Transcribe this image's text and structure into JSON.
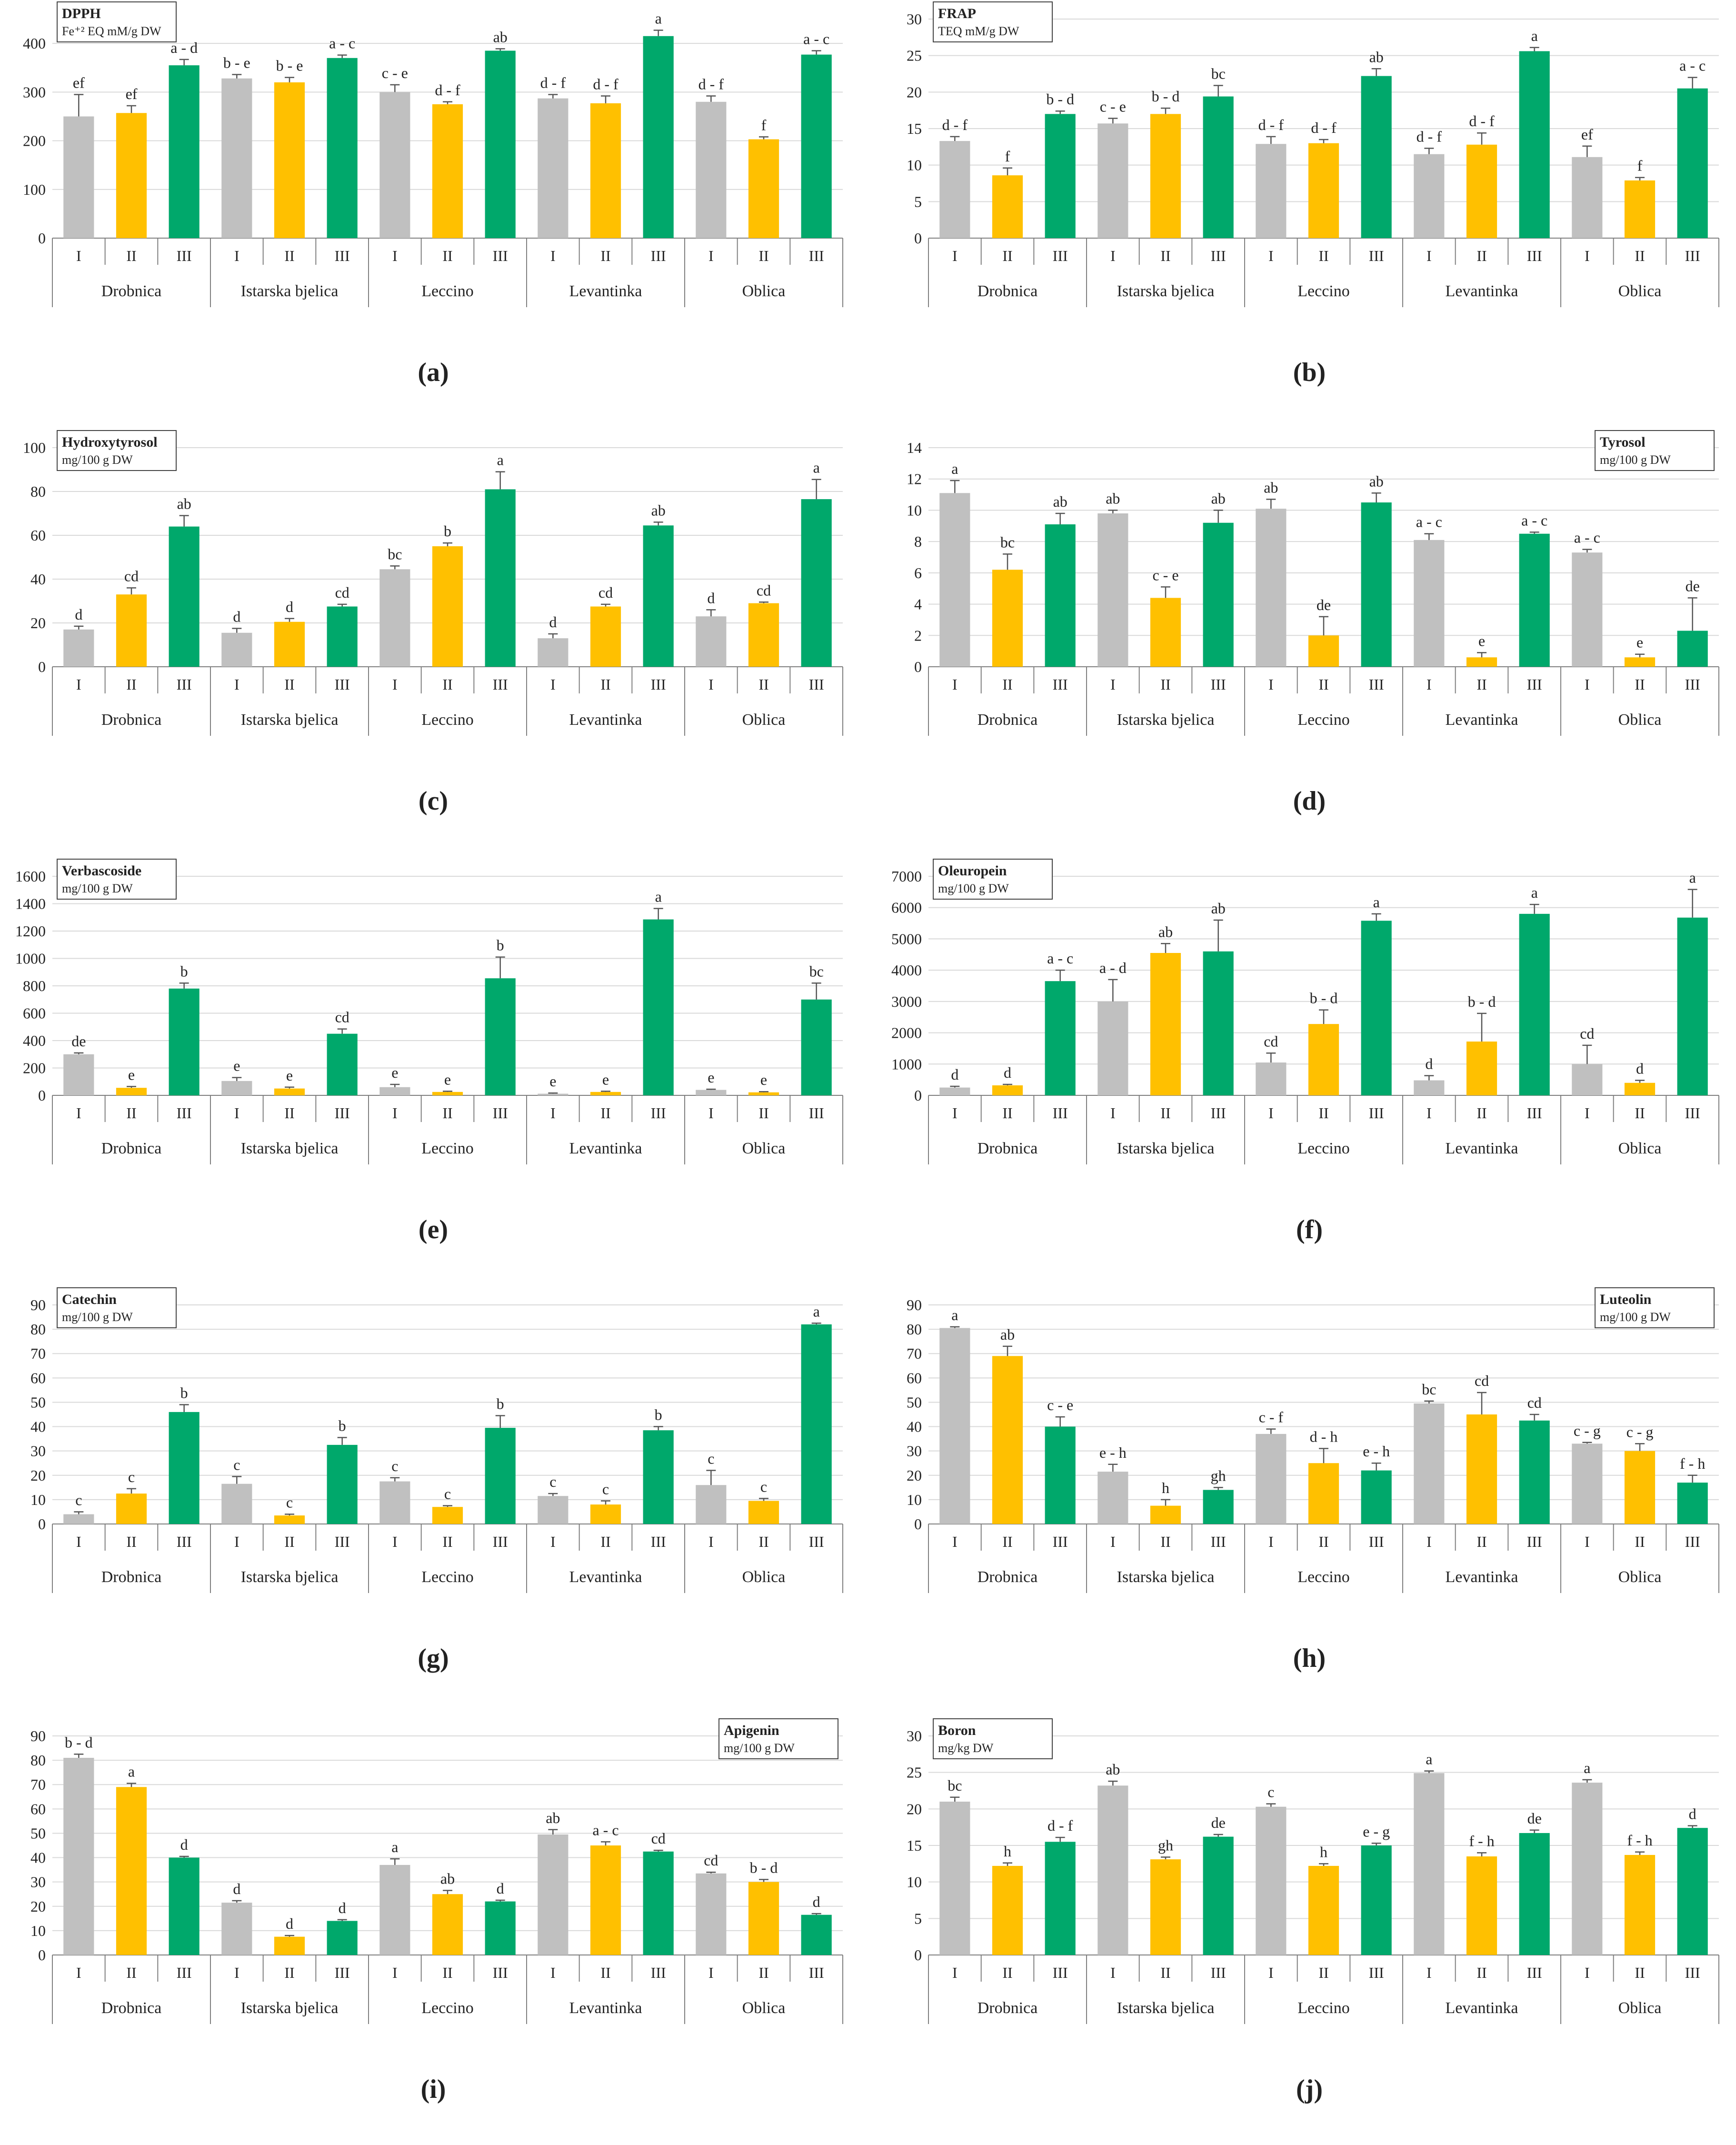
{
  "colors": {
    "I": "#c0c0c0",
    "II": "#ffc000",
    "III": "#00a86b",
    "grid": "#d9d9d9",
    "axis": "#7f7f7f"
  },
  "chart_data": [
    {
      "type": "bar",
      "panel": "(a)",
      "title": "DPPH",
      "unit": "Fe⁺² EQ mM/g DW",
      "legend": "top-left",
      "ylim": [
        0,
        450
      ],
      "yticks": [
        0,
        100,
        200,
        300,
        400
      ],
      "groups": [
        "Drobnica",
        "Istarska bjelica",
        "Leccino",
        "Levantinka",
        "Oblica"
      ],
      "phases": [
        "I",
        "II",
        "III"
      ],
      "values": [
        [
          250,
          257,
          355
        ],
        [
          328,
          320,
          370
        ],
        [
          300,
          275,
          385
        ],
        [
          287,
          277,
          415
        ],
        [
          280,
          203,
          377
        ]
      ],
      "errors": [
        [
          45,
          15,
          12
        ],
        [
          8,
          10,
          6
        ],
        [
          15,
          5,
          4
        ],
        [
          8,
          15,
          12
        ],
        [
          12,
          5,
          8
        ]
      ],
      "letters": [
        [
          "ef",
          "ef",
          "a - d"
        ],
        [
          "b - e",
          "b - e",
          "a - c"
        ],
        [
          "c - e",
          "d - f",
          "ab"
        ],
        [
          "d - f",
          "d - f",
          "a"
        ],
        [
          "d - f",
          "f",
          "a - c"
        ]
      ]
    },
    {
      "type": "bar",
      "panel": "(b)",
      "title": "FRAP",
      "unit": "TEQ mM/g DW",
      "legend": "top-left",
      "ylim": [
        0,
        30
      ],
      "yticks": [
        0,
        5,
        10,
        15,
        20,
        25,
        30
      ],
      "groups": [
        "Drobnica",
        "Istarska bjelica",
        "Leccino",
        "Levantinka",
        "Oblica"
      ],
      "phases": [
        "I",
        "II",
        "III"
      ],
      "values": [
        [
          13.3,
          8.6,
          17.0
        ],
        [
          15.7,
          17.0,
          19.4
        ],
        [
          12.9,
          13.0,
          22.2
        ],
        [
          11.5,
          12.8,
          25.6
        ],
        [
          11.1,
          7.9,
          20.5
        ]
      ],
      "errors": [
        [
          0.6,
          1.0,
          0.4
        ],
        [
          0.7,
          0.8,
          1.5
        ],
        [
          1.0,
          0.5,
          1.0
        ],
        [
          0.8,
          1.6,
          0.5
        ],
        [
          1.5,
          0.4,
          1.5
        ]
      ],
      "letters": [
        [
          "d - f",
          "f",
          "b - d"
        ],
        [
          "c - e",
          "b - d",
          "bc"
        ],
        [
          "d - f",
          "d - f",
          "ab"
        ],
        [
          "d - f",
          "d - f",
          "a"
        ],
        [
          "ef",
          "f",
          "a - c"
        ]
      ]
    },
    {
      "type": "bar",
      "panel": "(c)",
      "title": "Hydroxytyrosol",
      "unit": "mg/100 g DW",
      "legend": "top-left",
      "ylim": [
        0,
        100
      ],
      "yticks": [
        0,
        20,
        40,
        60,
        80,
        100
      ],
      "groups": [
        "Drobnica",
        "Istarska bjelica",
        "Leccino",
        "Levantinka",
        "Oblica"
      ],
      "phases": [
        "I",
        "II",
        "III"
      ],
      "values": [
        [
          17,
          33,
          64
        ],
        [
          15.5,
          20.5,
          27.5
        ],
        [
          44.5,
          55,
          81
        ],
        [
          13,
          27.5,
          64.5
        ],
        [
          23,
          29,
          76.5
        ]
      ],
      "errors": [
        [
          1.5,
          3,
          5
        ],
        [
          2,
          1.5,
          1
        ],
        [
          1.5,
          1.5,
          8
        ],
        [
          2,
          1,
          1.5
        ],
        [
          3,
          0.5,
          9
        ]
      ],
      "letters": [
        [
          "d",
          "cd",
          "ab"
        ],
        [
          "d",
          "d",
          "cd"
        ],
        [
          "bc",
          "b",
          "a"
        ],
        [
          "d",
          "cd",
          "ab"
        ],
        [
          "d",
          "cd",
          "a"
        ]
      ]
    },
    {
      "type": "bar",
      "panel": "(d)",
      "title": "Tyrosol",
      "unit": "mg/100 g DW",
      "legend": "top-right",
      "ylim": [
        0,
        14
      ],
      "yticks": [
        0,
        2,
        4,
        6,
        8,
        10,
        12,
        14
      ],
      "groups": [
        "Drobnica",
        "Istarska bjelica",
        "Leccino",
        "Levantinka",
        "Oblica"
      ],
      "phases": [
        "I",
        "II",
        "III"
      ],
      "values": [
        [
          11.1,
          6.2,
          9.1
        ],
        [
          9.8,
          4.4,
          9.2
        ],
        [
          10.1,
          2.0,
          10.5
        ],
        [
          8.1,
          0.6,
          8.5
        ],
        [
          7.3,
          0.6,
          2.3
        ]
      ],
      "errors": [
        [
          0.8,
          1.0,
          0.7
        ],
        [
          0.2,
          0.7,
          0.8
        ],
        [
          0.6,
          1.2,
          0.6
        ],
        [
          0.4,
          0.3,
          0.1
        ],
        [
          0.2,
          0.2,
          2.1
        ]
      ],
      "letters": [
        [
          "a",
          "bc",
          "ab"
        ],
        [
          "ab",
          "c - e",
          "ab"
        ],
        [
          "ab",
          "de",
          "ab"
        ],
        [
          "a - c",
          "e",
          "a - c"
        ],
        [
          "a - c",
          "e",
          "de"
        ]
      ]
    },
    {
      "type": "bar",
      "panel": "(e)",
      "title": "Verbascoside",
      "unit": "mg/100 g DW",
      "legend": "top-left",
      "ylim": [
        0,
        1600
      ],
      "yticks": [
        0,
        200,
        400,
        600,
        800,
        1000,
        1200,
        1400,
        1600
      ],
      "groups": [
        "Drobnica",
        "Istarska bjelica",
        "Leccino",
        "Levantinka",
        "Oblica"
      ],
      "phases": [
        "I",
        "II",
        "III"
      ],
      "values": [
        [
          300,
          55,
          780
        ],
        [
          105,
          50,
          450
        ],
        [
          60,
          25,
          855
        ],
        [
          12,
          25,
          1285
        ],
        [
          40,
          22,
          700
        ]
      ],
      "errors": [
        [
          10,
          10,
          40
        ],
        [
          25,
          10,
          35
        ],
        [
          20,
          5,
          155
        ],
        [
          5,
          5,
          80
        ],
        [
          5,
          5,
          120
        ]
      ],
      "letters": [
        [
          "de",
          "e",
          "b"
        ],
        [
          "e",
          "e",
          "cd"
        ],
        [
          "e",
          "e",
          "b"
        ],
        [
          "e",
          "e",
          "a"
        ],
        [
          "e",
          "e",
          "bc"
        ]
      ]
    },
    {
      "type": "bar",
      "panel": "(f)",
      "title": "Oleuropein",
      "unit": "mg/100 g DW",
      "legend": "top-left",
      "ylim": [
        0,
        7000
      ],
      "yticks": [
        0,
        1000,
        2000,
        3000,
        4000,
        5000,
        6000,
        7000
      ],
      "groups": [
        "Drobnica",
        "Istarska bjelica",
        "Leccino",
        "Levantinka",
        "Oblica"
      ],
      "phases": [
        "I",
        "II",
        "III"
      ],
      "values": [
        [
          250,
          320,
          3650
        ],
        [
          3000,
          4550,
          4600
        ],
        [
          1050,
          2280,
          5580
        ],
        [
          480,
          1720,
          5800
        ],
        [
          1000,
          400,
          5680
        ]
      ],
      "errors": [
        [
          40,
          30,
          350
        ],
        [
          700,
          300,
          1000
        ],
        [
          300,
          450,
          220
        ],
        [
          150,
          900,
          300
        ],
        [
          600,
          80,
          900
        ]
      ],
      "letters": [
        [
          "d",
          "d",
          "a - c"
        ],
        [
          "a - d",
          "ab",
          "ab"
        ],
        [
          "cd",
          "b - d",
          "a"
        ],
        [
          "d",
          "b - d",
          "a"
        ],
        [
          "cd",
          "d",
          "a"
        ]
      ]
    },
    {
      "type": "bar",
      "panel": "(g)",
      "title": "Catechin",
      "unit": "mg/100 g DW",
      "legend": "top-left",
      "ylim": [
        0,
        90
      ],
      "yticks": [
        0,
        10,
        20,
        30,
        40,
        50,
        60,
        70,
        80,
        90
      ],
      "groups": [
        "Drobnica",
        "Istarska bjelica",
        "Leccino",
        "Levantinka",
        "Oblica"
      ],
      "phases": [
        "I",
        "II",
        "III"
      ],
      "values": [
        [
          4,
          12.5,
          46
        ],
        [
          16.5,
          3.5,
          32.5
        ],
        [
          17.5,
          7,
          39.5
        ],
        [
          11.5,
          8,
          38.5
        ],
        [
          16,
          9.5,
          82
        ]
      ],
      "errors": [
        [
          1,
          2,
          3
        ],
        [
          3,
          0.5,
          3
        ],
        [
          1.5,
          0.5,
          5
        ],
        [
          1,
          1.5,
          1.5
        ],
        [
          6,
          1,
          0.5
        ]
      ],
      "letters": [
        [
          "c",
          "c",
          "b"
        ],
        [
          "c",
          "c",
          "b"
        ],
        [
          "c",
          "c",
          "b"
        ],
        [
          "c",
          "c",
          "b"
        ],
        [
          "c",
          "c",
          "a"
        ]
      ]
    },
    {
      "type": "bar",
      "panel": "(h)",
      "title": "Luteolin",
      "unit": "mg/100 g DW",
      "legend": "top-right",
      "ylim": [
        0,
        90
      ],
      "yticks": [
        0,
        10,
        20,
        30,
        40,
        50,
        60,
        70,
        80,
        90
      ],
      "groups": [
        "Drobnica",
        "Istarska bjelica",
        "Leccino",
        "Levantinka",
        "Oblica"
      ],
      "phases": [
        "I",
        "II",
        "III"
      ],
      "values": [
        [
          80.5,
          69,
          40
        ],
        [
          21.5,
          7.5,
          14
        ],
        [
          37,
          25,
          22
        ],
        [
          49.5,
          45,
          42.5
        ],
        [
          33,
          30,
          17
        ]
      ],
      "errors": [
        [
          0.5,
          4,
          4
        ],
        [
          3,
          2.5,
          1
        ],
        [
          2,
          6,
          3
        ],
        [
          1,
          9,
          2.5
        ],
        [
          0.5,
          3,
          3
        ]
      ],
      "letters": [
        [
          "a",
          "ab",
          "c - e"
        ],
        [
          "e - h",
          "h",
          "gh"
        ],
        [
          "c - f",
          "d - h",
          "e - h"
        ],
        [
          "bc",
          "cd",
          "cd"
        ],
        [
          "c - g",
          "c - g",
          "f - h"
        ]
      ]
    },
    {
      "type": "bar",
      "panel": "(i)",
      "title": "Apigenin",
      "unit": "mg/100 g DW",
      "legend": "top-right",
      "ylim": [
        0,
        90
      ],
      "yticks": [
        0,
        10,
        20,
        30,
        40,
        50,
        60,
        70,
        80,
        90
      ],
      "groups": [
        "Drobnica",
        "Istarska bjelica",
        "Leccino",
        "Levantinka",
        "Oblica"
      ],
      "phases": [
        "I",
        "II",
        "III"
      ],
      "values": [
        [
          81,
          69,
          40
        ],
        [
          21.5,
          7.5,
          14
        ],
        [
          37,
          25,
          22
        ],
        [
          49.5,
          45,
          42.5
        ],
        [
          33.5,
          30,
          16.5
        ]
      ],
      "errors": [
        [
          1.5,
          1.5,
          0.5
        ],
        [
          0.8,
          0.5,
          0.5
        ],
        [
          2.5,
          1.5,
          0.5
        ],
        [
          2,
          1.5,
          0.5
        ],
        [
          0.5,
          1,
          0.5
        ]
      ],
      "letters": [
        [
          "b - d",
          "a",
          "d"
        ],
        [
          "d",
          "d",
          "d"
        ],
        [
          "a",
          "ab",
          "d"
        ],
        [
          "ab",
          "a - c",
          "cd"
        ],
        [
          "cd",
          "b - d",
          "d"
        ]
      ]
    },
    {
      "type": "bar",
      "panel": "(j)",
      "title": "Boron",
      "unit": "mg/kg DW",
      "legend": "top-left",
      "ylim": [
        0,
        30
      ],
      "yticks": [
        0,
        5,
        10,
        15,
        20,
        25,
        30
      ],
      "groups": [
        "Drobnica",
        "Istarska bjelica",
        "Leccino",
        "Levantinka",
        "Oblica"
      ],
      "phases": [
        "I",
        "II",
        "III"
      ],
      "values": [
        [
          21,
          12.2,
          15.5
        ],
        [
          23.2,
          13.1,
          16.2
        ],
        [
          20.3,
          12.2,
          15.0
        ],
        [
          24.9,
          13.5,
          16.7
        ],
        [
          23.6,
          13.7,
          17.4
        ]
      ],
      "errors": [
        [
          0.6,
          0.4,
          0.6
        ],
        [
          0.6,
          0.3,
          0.3
        ],
        [
          0.4,
          0.3,
          0.3
        ],
        [
          0.3,
          0.5,
          0.4
        ],
        [
          0.4,
          0.4,
          0.3
        ]
      ],
      "letters": [
        [
          "bc",
          "h",
          "d - f"
        ],
        [
          "ab",
          "gh",
          "de"
        ],
        [
          "c",
          "h",
          "e - g"
        ],
        [
          "a",
          "f - h",
          "de"
        ],
        [
          "a",
          "f - h",
          "d"
        ]
      ]
    }
  ]
}
